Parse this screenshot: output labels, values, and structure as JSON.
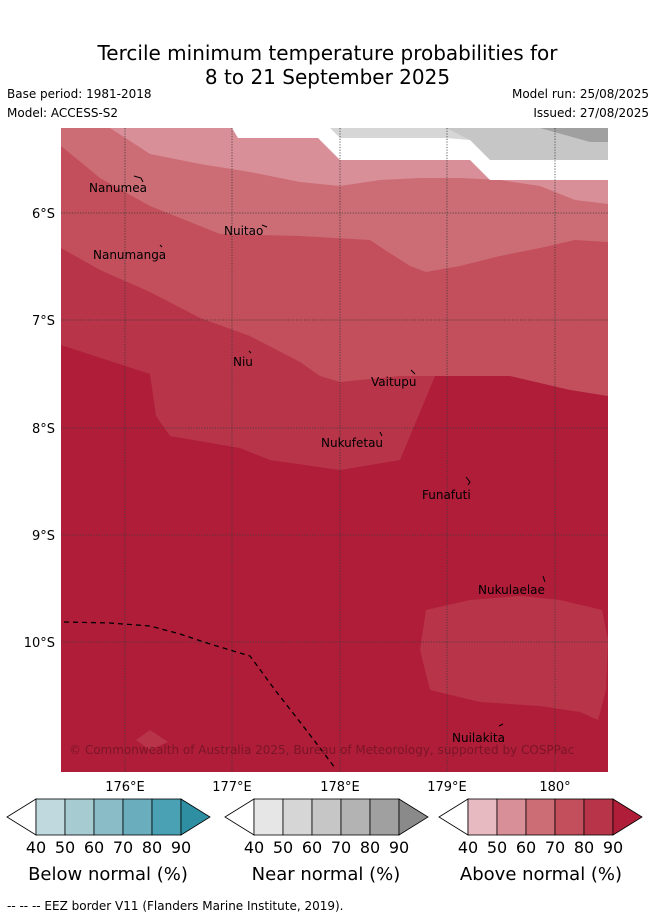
{
  "header": {
    "title_line1": "Tercile minimum temperature probabilities for",
    "title_line2": "8 to 21 September 2025",
    "base_period": "Base period: 1981-2018",
    "model": "Model: ACCESS-S2",
    "model_run": "Model run: 25/08/2025",
    "issued": "Issued: 27/08/2025"
  },
  "map": {
    "lon_ticks": [
      "176°E",
      "177°E",
      "178°E",
      "179°E",
      "180°"
    ],
    "lat_ticks": [
      "6°S",
      "7°S",
      "8°S",
      "9°S",
      "10°S"
    ],
    "islands": [
      {
        "name": "Nanumea"
      },
      {
        "name": "Nuitao"
      },
      {
        "name": "Nanumanga"
      },
      {
        "name": "Niu"
      },
      {
        "name": "Vaitupu"
      },
      {
        "name": "Nukufetau"
      },
      {
        "name": "Funafuti"
      },
      {
        "name": "Nukulaelae"
      },
      {
        "name": "Nuilakita"
      }
    ],
    "copyright": "© Commonwealth of Australia 2025, Bureau of Meteorology, supported by COSPPac"
  },
  "legend": {
    "ticks": [
      "40",
      "50",
      "60",
      "70",
      "80",
      "90"
    ],
    "below": {
      "label": "Below normal (%)",
      "colors": [
        "#ffffff",
        "#bfd9df",
        "#a6ccd2",
        "#89bcc7",
        "#6aaebe",
        "#4aa1b3",
        "#2e8fa3"
      ]
    },
    "near": {
      "label": "Near normal (%)",
      "colors": [
        "#ffffff",
        "#e6e6e6",
        "#d6d6d6",
        "#c6c6c6",
        "#b3b3b3",
        "#a0a0a0",
        "#8a8a8a"
      ]
    },
    "above": {
      "label": "Above normal (%)",
      "colors": [
        "#ffffff",
        "#e6bac0",
        "#d98f97",
        "#cc6c75",
        "#c24f5b",
        "#b83449",
        "#b01d39"
      ]
    }
  },
  "footnote": "-- -- -- EEZ border V11 (Flanders Marine Institute, 2019)."
}
